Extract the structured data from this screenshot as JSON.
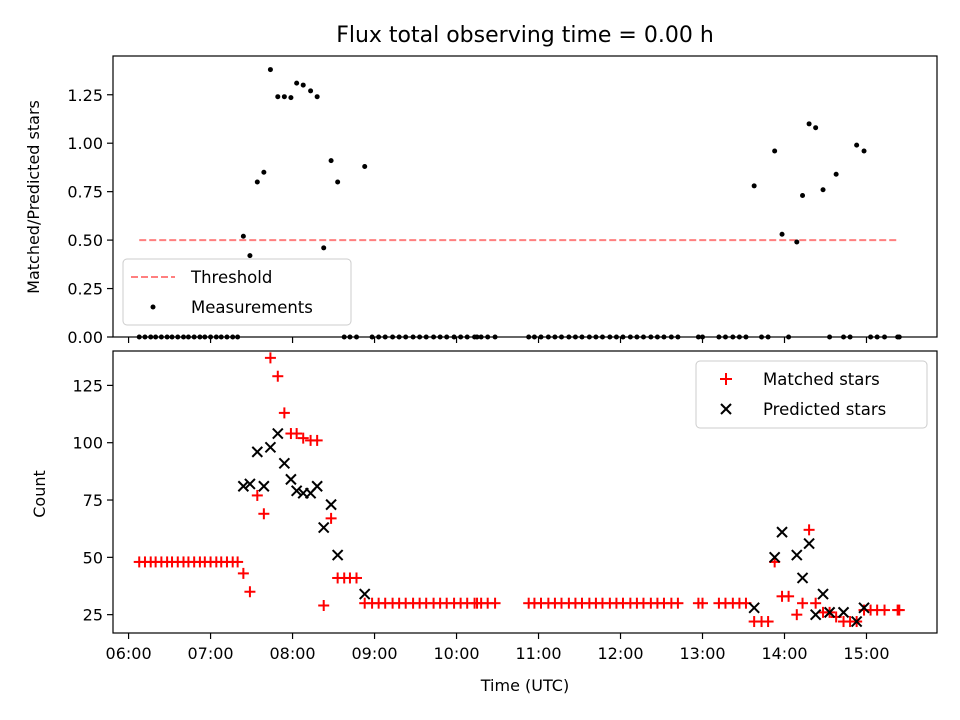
{
  "chart_data": [
    {
      "type": "scatter",
      "title": "Flux total observing time = 0.00 h",
      "xlabel": "",
      "ylabel": "Matched/Predicted stars",
      "xlim": [
        5.81,
        15.86
      ],
      "ylim": [
        0.0,
        1.45
      ],
      "yticks": [
        0.0,
        0.25,
        0.5,
        0.75,
        1.0,
        1.25
      ],
      "yticklabels": [
        "0.00",
        "0.25",
        "0.50",
        "0.75",
        "1.00",
        "1.25"
      ],
      "xticks": [
        6,
        7,
        8,
        9,
        10,
        11,
        12,
        13,
        14,
        15
      ],
      "legend_position": "lower-left",
      "threshold": {
        "name": "Threshold",
        "value": 0.5,
        "x": [
          6.13,
          15.4
        ],
        "color": "#ff7f7f"
      },
      "series": [
        {
          "name": "Measurements",
          "color": "#000000",
          "points": [
            [
              6.13,
              0
            ],
            [
              6.2,
              0
            ],
            [
              6.27,
              0
            ],
            [
              6.33,
              0
            ],
            [
              6.4,
              0
            ],
            [
              6.47,
              0
            ],
            [
              6.53,
              0
            ],
            [
              6.6,
              0
            ],
            [
              6.67,
              0
            ],
            [
              6.73,
              0
            ],
            [
              6.8,
              0
            ],
            [
              6.87,
              0
            ],
            [
              6.93,
              0
            ],
            [
              7.0,
              0
            ],
            [
              7.07,
              0
            ],
            [
              7.13,
              0
            ],
            [
              7.2,
              0
            ],
            [
              7.27,
              0
            ],
            [
              7.33,
              0
            ],
            [
              7.4,
              0.52
            ],
            [
              7.48,
              0.42
            ],
            [
              7.57,
              0.8
            ],
            [
              7.65,
              0.85
            ],
            [
              7.73,
              1.38
            ],
            [
              7.82,
              1.24
            ],
            [
              7.9,
              1.24
            ],
            [
              7.98,
              1.235
            ],
            [
              8.05,
              1.31
            ],
            [
              8.13,
              1.3
            ],
            [
              8.22,
              1.27
            ],
            [
              8.3,
              1.24
            ],
            [
              8.38,
              0.46
            ],
            [
              8.47,
              0.91
            ],
            [
              8.55,
              0.8
            ],
            [
              8.63,
              0
            ],
            [
              8.7,
              0
            ],
            [
              8.78,
              0
            ],
            [
              8.88,
              0.88
            ],
            [
              8.97,
              0
            ],
            [
              9.05,
              0
            ],
            [
              9.13,
              0
            ],
            [
              9.22,
              0
            ],
            [
              9.3,
              0
            ],
            [
              9.38,
              0
            ],
            [
              9.47,
              0
            ],
            [
              9.55,
              0
            ],
            [
              9.63,
              0
            ],
            [
              9.72,
              0
            ],
            [
              9.8,
              0
            ],
            [
              9.88,
              0
            ],
            [
              9.97,
              0
            ],
            [
              10.05,
              0
            ],
            [
              10.13,
              0
            ],
            [
              10.22,
              0
            ],
            [
              10.25,
              0
            ],
            [
              10.3,
              0
            ],
            [
              10.38,
              0
            ],
            [
              10.47,
              0
            ],
            [
              10.88,
              0
            ],
            [
              10.95,
              0
            ],
            [
              11.03,
              0
            ],
            [
              11.12,
              0
            ],
            [
              11.2,
              0
            ],
            [
              11.28,
              0
            ],
            [
              11.37,
              0
            ],
            [
              11.45,
              0
            ],
            [
              11.53,
              0
            ],
            [
              11.62,
              0
            ],
            [
              11.7,
              0
            ],
            [
              11.78,
              0
            ],
            [
              11.87,
              0
            ],
            [
              11.95,
              0
            ],
            [
              12.03,
              0
            ],
            [
              12.12,
              0
            ],
            [
              12.2,
              0
            ],
            [
              12.28,
              0
            ],
            [
              12.37,
              0
            ],
            [
              12.45,
              0
            ],
            [
              12.53,
              0
            ],
            [
              12.62,
              0
            ],
            [
              12.7,
              0
            ],
            [
              12.95,
              0
            ],
            [
              13.0,
              0
            ],
            [
              13.2,
              0
            ],
            [
              13.28,
              0
            ],
            [
              13.37,
              0
            ],
            [
              13.45,
              0
            ],
            [
              13.53,
              0
            ],
            [
              13.63,
              0.78
            ],
            [
              13.72,
              0
            ],
            [
              13.8,
              0
            ],
            [
              13.88,
              0.96
            ],
            [
              13.97,
              0.53
            ],
            [
              14.05,
              0
            ],
            [
              14.15,
              0.49
            ],
            [
              14.22,
              0.73
            ],
            [
              14.3,
              1.1
            ],
            [
              14.38,
              1.08
            ],
            [
              14.47,
              0.76
            ],
            [
              14.55,
              0
            ],
            [
              14.63,
              0.84
            ],
            [
              14.72,
              0
            ],
            [
              14.8,
              0
            ],
            [
              14.88,
              0.99
            ],
            [
              14.97,
              0.96
            ],
            [
              15.05,
              0
            ],
            [
              15.13,
              0
            ],
            [
              15.22,
              0
            ],
            [
              15.38,
              0
            ],
            [
              15.4,
              0
            ]
          ]
        }
      ]
    },
    {
      "type": "scatter",
      "title": "",
      "xlabel": "Time (UTC)",
      "ylabel": "Count",
      "xlim": [
        5.81,
        15.86
      ],
      "ylim": [
        17,
        140
      ],
      "yticks": [
        25,
        50,
        75,
        100,
        125
      ],
      "yticklabels": [
        "25",
        "50",
        "75",
        "100",
        "125"
      ],
      "xticks": [
        6,
        7,
        8,
        9,
        10,
        11,
        12,
        13,
        14,
        15
      ],
      "xticklabels": [
        "06:00",
        "07:00",
        "08:00",
        "09:00",
        "10:00",
        "11:00",
        "12:00",
        "13:00",
        "14:00",
        "15:00"
      ],
      "legend_position": "top-right",
      "series": [
        {
          "name": "Matched stars",
          "marker": "plus",
          "color": "#ff0000",
          "points": [
            [
              6.13,
              48
            ],
            [
              6.2,
              48
            ],
            [
              6.27,
              48
            ],
            [
              6.33,
              48
            ],
            [
              6.4,
              48
            ],
            [
              6.47,
              48
            ],
            [
              6.53,
              48
            ],
            [
              6.6,
              48
            ],
            [
              6.67,
              48
            ],
            [
              6.73,
              48
            ],
            [
              6.8,
              48
            ],
            [
              6.87,
              48
            ],
            [
              6.93,
              48
            ],
            [
              7.0,
              48
            ],
            [
              7.07,
              48
            ],
            [
              7.13,
              48
            ],
            [
              7.2,
              48
            ],
            [
              7.27,
              48
            ],
            [
              7.33,
              48
            ],
            [
              7.4,
              43
            ],
            [
              7.48,
              35
            ],
            [
              7.57,
              77
            ],
            [
              7.65,
              69
            ],
            [
              7.73,
              137
            ],
            [
              7.82,
              129
            ],
            [
              7.9,
              113
            ],
            [
              7.98,
              104
            ],
            [
              8.05,
              104
            ],
            [
              8.13,
              102
            ],
            [
              8.22,
              101
            ],
            [
              8.3,
              101
            ],
            [
              8.38,
              29
            ],
            [
              8.47,
              67
            ],
            [
              8.55,
              41
            ],
            [
              8.63,
              41
            ],
            [
              8.7,
              41
            ],
            [
              8.78,
              41
            ],
            [
              8.88,
              30
            ],
            [
              8.97,
              30
            ],
            [
              9.05,
              30
            ],
            [
              9.13,
              30
            ],
            [
              9.22,
              30
            ],
            [
              9.3,
              30
            ],
            [
              9.38,
              30
            ],
            [
              9.47,
              30
            ],
            [
              9.55,
              30
            ],
            [
              9.63,
              30
            ],
            [
              9.72,
              30
            ],
            [
              9.8,
              30
            ],
            [
              9.88,
              30
            ],
            [
              9.97,
              30
            ],
            [
              10.05,
              30
            ],
            [
              10.13,
              30
            ],
            [
              10.22,
              30
            ],
            [
              10.25,
              30
            ],
            [
              10.3,
              30
            ],
            [
              10.38,
              30
            ],
            [
              10.47,
              30
            ],
            [
              10.88,
              30
            ],
            [
              10.95,
              30
            ],
            [
              11.03,
              30
            ],
            [
              11.12,
              30
            ],
            [
              11.2,
              30
            ],
            [
              11.28,
              30
            ],
            [
              11.37,
              30
            ],
            [
              11.45,
              30
            ],
            [
              11.53,
              30
            ],
            [
              11.62,
              30
            ],
            [
              11.7,
              30
            ],
            [
              11.78,
              30
            ],
            [
              11.87,
              30
            ],
            [
              11.95,
              30
            ],
            [
              12.03,
              30
            ],
            [
              12.12,
              30
            ],
            [
              12.2,
              30
            ],
            [
              12.28,
              30
            ],
            [
              12.37,
              30
            ],
            [
              12.45,
              30
            ],
            [
              12.53,
              30
            ],
            [
              12.62,
              30
            ],
            [
              12.7,
              30
            ],
            [
              12.95,
              30
            ],
            [
              13.0,
              30
            ],
            [
              13.2,
              30
            ],
            [
              13.28,
              30
            ],
            [
              13.37,
              30
            ],
            [
              13.45,
              30
            ],
            [
              13.53,
              30
            ],
            [
              13.63,
              22
            ],
            [
              13.72,
              22
            ],
            [
              13.8,
              22
            ],
            [
              13.88,
              48
            ],
            [
              13.97,
              33
            ],
            [
              14.05,
              33
            ],
            [
              14.15,
              25
            ],
            [
              14.22,
              30
            ],
            [
              14.3,
              62
            ],
            [
              14.38,
              30
            ],
            [
              14.47,
              26
            ],
            [
              14.55,
              26
            ],
            [
              14.63,
              24
            ],
            [
              14.72,
              22
            ],
            [
              14.8,
              22
            ],
            [
              14.88,
              22
            ],
            [
              14.97,
              27
            ],
            [
              15.05,
              27
            ],
            [
              15.13,
              27
            ],
            [
              15.22,
              27
            ],
            [
              15.38,
              27
            ],
            [
              15.4,
              27
            ]
          ]
        },
        {
          "name": "Predicted stars",
          "marker": "x",
          "color": "#000000",
          "points": [
            [
              7.4,
              81
            ],
            [
              7.48,
              82
            ],
            [
              7.57,
              96
            ],
            [
              7.65,
              81
            ],
            [
              7.73,
              98
            ],
            [
              7.82,
              104
            ],
            [
              7.9,
              91
            ],
            [
              7.98,
              84
            ],
            [
              8.05,
              79
            ],
            [
              8.13,
              78
            ],
            [
              8.22,
              78
            ],
            [
              8.3,
              81
            ],
            [
              8.38,
              63
            ],
            [
              8.47,
              73
            ],
            [
              8.55,
              51
            ],
            [
              8.88,
              34
            ],
            [
              13.63,
              28
            ],
            [
              13.88,
              50
            ],
            [
              13.97,
              61
            ],
            [
              14.15,
              51
            ],
            [
              14.22,
              41
            ],
            [
              14.3,
              56
            ],
            [
              14.38,
              25
            ],
            [
              14.47,
              34
            ],
            [
              14.55,
              26
            ],
            [
              14.72,
              26
            ],
            [
              14.88,
              22
            ],
            [
              14.97,
              28
            ]
          ]
        }
      ]
    }
  ]
}
